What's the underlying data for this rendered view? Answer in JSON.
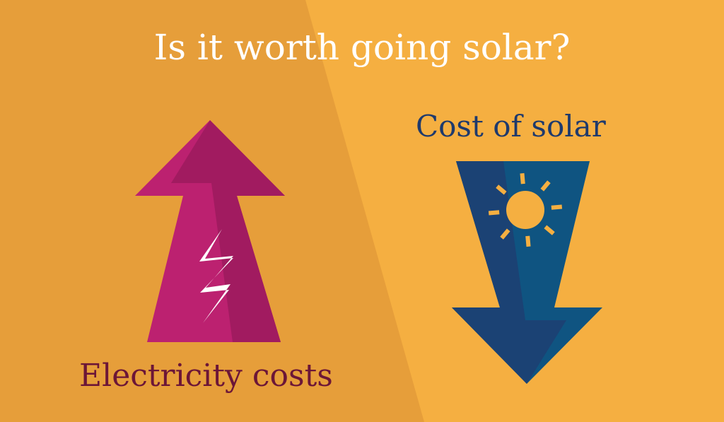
{
  "title": "Is it worth going solar?",
  "right_label": "Cost of solar",
  "left_label": "Electricity costs",
  "icons": {
    "up_arrow": "arrow-up-icon",
    "down_arrow": "arrow-down-icon",
    "bolt": "lightning-bolt-icon",
    "sun": "sun-icon"
  },
  "colors": {
    "background_left": "#E69E3A",
    "background_right": "#F5AF41",
    "title": "#FFFFFF",
    "up_arrow_light": "#BC2170",
    "up_arrow_dark": "#A11B60",
    "down_arrow_dark": "#1B4274",
    "down_arrow_light": "#0F5481",
    "right_label": "#1F3A6C",
    "left_label": "#6C1637"
  }
}
